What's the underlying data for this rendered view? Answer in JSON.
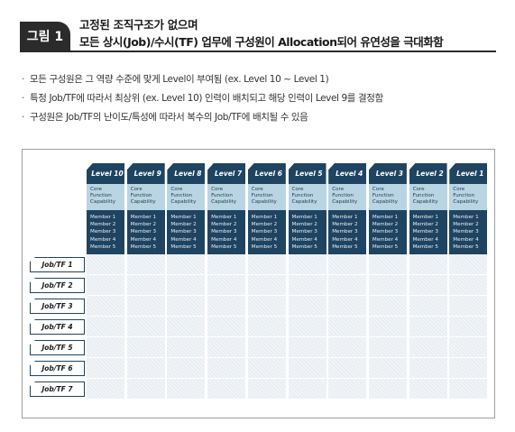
{
  "figure": {
    "label": "그림 1",
    "title_line1": "고정된 조직구조가 없으며",
    "title_line2": "모든 상시(Job)/수시(TF) 업무에 구성원이 Allocation되어 유연성을 극대화함"
  },
  "bullets": [
    "모든 구성원은 그 역량 수준에 맞게 Level이 부여됨 (ex. Level 10 ~ Level 1)",
    "특정 Job/TF에 따라서 최상위 (ex. Level 10) 인력이 배치되고 해당 인력이 Level 9를 결정함",
    "구성원은 Job/TF의 난이도/특성에 따라서 복수의 Job/TF에 배치될 수 있음"
  ],
  "bullet_marker": "·",
  "levels": [
    "Level 10",
    "Level 9",
    "Level 8",
    "Level 7",
    "Level 6",
    "Level 5",
    "Level 4",
    "Level 3",
    "Level 2",
    "Level 1"
  ],
  "capability_lines": [
    "Core",
    "Function",
    "Capability"
  ],
  "members": [
    "Member 1",
    "Member 2",
    "Member 3",
    "Member 4",
    "Member 5"
  ],
  "jobs": [
    "Job/TF 1",
    "Job/TF 2",
    "Job/TF 3",
    "Job/TF 4",
    "Job/TF 5",
    "Job/TF 6",
    "Job/TF 7"
  ],
  "colors": {
    "level_header": "#1f4461",
    "capability_bg": "#b9d5e3",
    "member_bg": "#1f4461",
    "grid_cell": "#e9eef2",
    "title_bar": "#2b2b2b"
  }
}
